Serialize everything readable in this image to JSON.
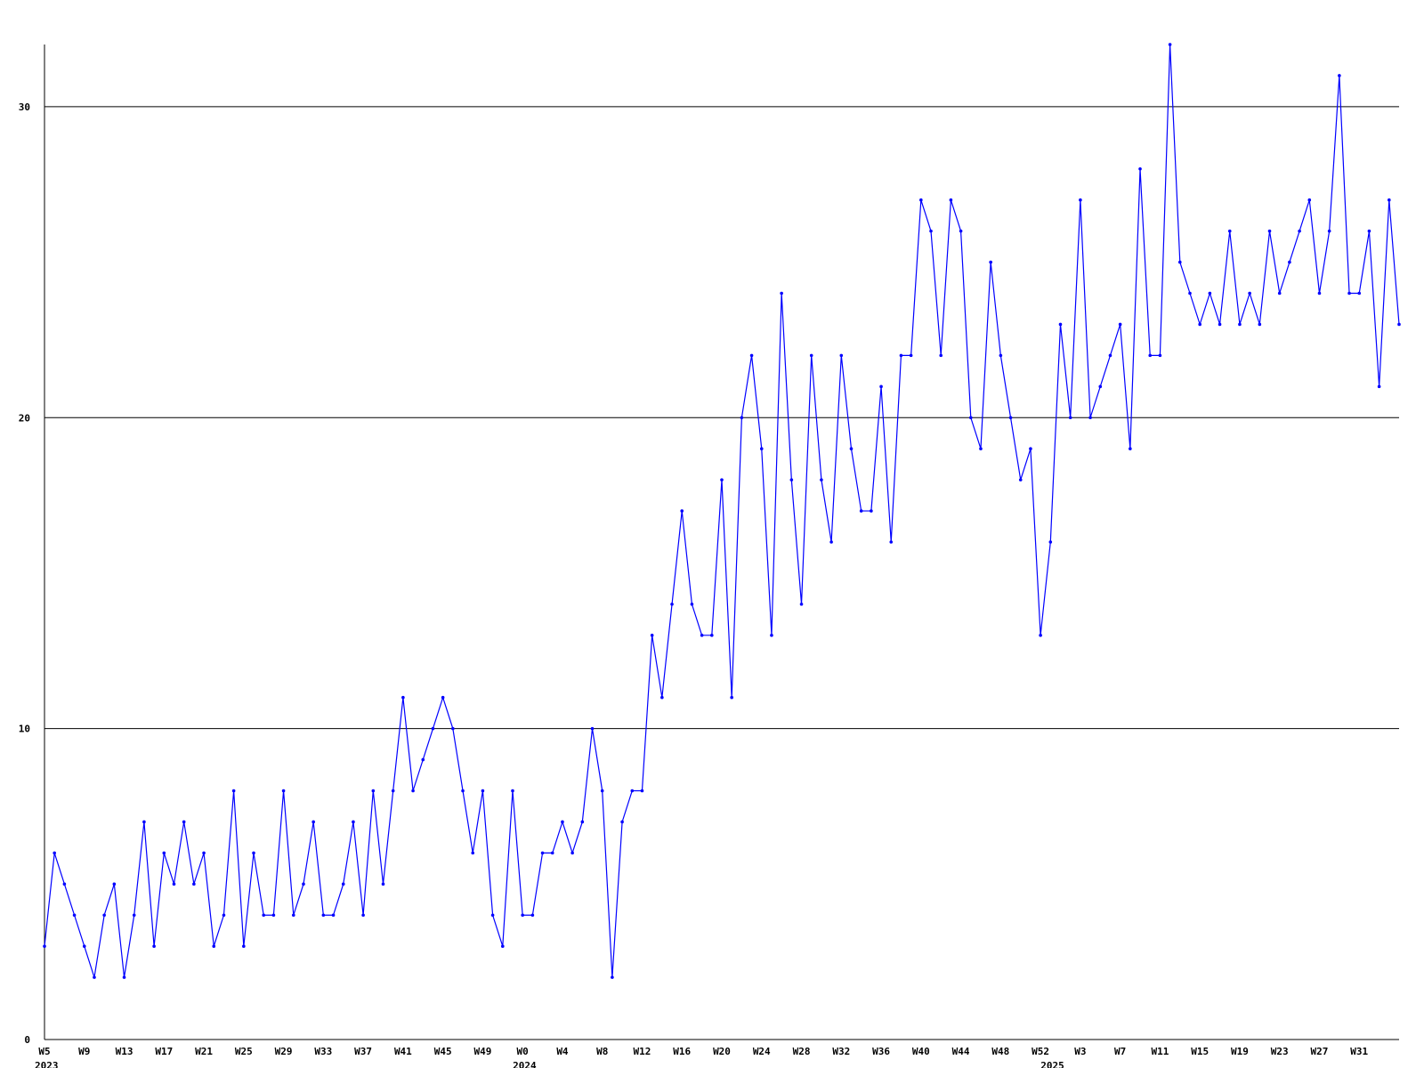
{
  "chart_data": {
    "type": "line",
    "title": "",
    "xlabel": "",
    "ylabel": "",
    "ylim": [
      0,
      32
    ],
    "y_ticks": [
      0,
      10,
      20,
      30
    ],
    "grid": "horizontal",
    "legend": "none",
    "line_color": "#0000ff",
    "grid_color": "#000000",
    "x_tick_labels": [
      "W5",
      "W9",
      "W13",
      "W17",
      "W21",
      "W25",
      "W29",
      "W33",
      "W37",
      "W41",
      "W45",
      "W49",
      "W0",
      "W4",
      "W8",
      "W12",
      "W16",
      "W20",
      "W24",
      "W28",
      "W32",
      "W36",
      "W40",
      "W44",
      "W48",
      "W52",
      "W3",
      "W7",
      "W11",
      "W15",
      "W19",
      "W23",
      "W27",
      "W31"
    ],
    "x_tick_index": [
      0,
      4,
      8,
      12,
      16,
      20,
      24,
      28,
      32,
      36,
      40,
      44,
      48,
      52,
      56,
      60,
      64,
      68,
      72,
      76,
      80,
      84,
      88,
      92,
      96,
      100,
      104,
      108,
      112,
      116,
      120,
      124,
      128,
      132
    ],
    "year_labels": [
      "2023",
      "2024",
      "2025"
    ],
    "year_index": [
      0,
      48,
      101
    ],
    "series": [
      {
        "values": [
          3,
          6,
          5,
          4,
          3,
          2,
          4,
          5,
          2,
          4,
          7,
          3,
          6,
          5,
          7,
          5,
          6,
          3,
          4,
          8,
          3,
          6,
          4,
          4,
          8,
          4,
          5,
          7,
          4,
          4,
          5,
          7,
          4,
          8,
          5,
          8,
          11,
          8,
          9,
          10,
          11,
          10,
          8,
          6,
          8,
          4,
          3,
          8,
          4,
          4,
          6,
          6,
          7,
          6,
          7,
          10,
          8,
          2,
          7,
          8,
          8,
          13,
          11,
          14,
          17,
          14,
          13,
          13,
          18,
          11,
          20,
          22,
          19,
          13,
          24,
          18,
          14,
          22,
          18,
          16,
          22,
          19,
          17,
          17,
          21,
          16,
          22,
          22,
          27,
          26,
          22,
          27,
          26,
          20,
          19,
          25,
          22,
          20,
          18,
          19,
          13,
          16,
          23,
          20,
          27,
          20,
          21,
          22,
          23,
          19,
          28,
          22,
          22,
          32,
          25,
          24,
          23,
          24,
          23,
          26,
          23,
          24,
          23,
          26,
          24,
          25,
          26,
          27,
          24,
          26,
          31,
          24,
          24,
          26,
          21,
          27,
          23
        ]
      }
    ]
  }
}
